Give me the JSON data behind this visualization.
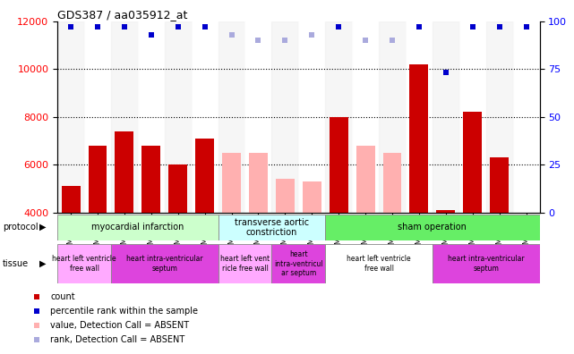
{
  "title": "GDS387 / aa035912_at",
  "samples": [
    "GSM6118",
    "GSM6119",
    "GSM6120",
    "GSM6121",
    "GSM6122",
    "GSM6123",
    "GSM6132",
    "GSM6133",
    "GSM6134",
    "GSM6135",
    "GSM6124",
    "GSM6125",
    "GSM6126",
    "GSM6127",
    "GSM6128",
    "GSM6129",
    "GSM6130",
    "GSM6131"
  ],
  "counts": [
    5100,
    6800,
    7400,
    6800,
    6000,
    7100,
    6500,
    6500,
    5400,
    5300,
    8000,
    6800,
    6500,
    10200,
    4100,
    8200,
    6300,
    null
  ],
  "absent": [
    false,
    false,
    false,
    false,
    false,
    false,
    true,
    true,
    true,
    true,
    false,
    true,
    true,
    false,
    false,
    false,
    false,
    false
  ],
  "percentile_ranks": [
    97,
    97,
    97,
    93,
    97,
    97,
    93,
    90,
    90,
    93,
    97,
    90,
    90,
    97,
    73,
    97,
    97,
    97
  ],
  "absent_ranks": [
    false,
    false,
    false,
    false,
    false,
    false,
    true,
    true,
    true,
    true,
    false,
    true,
    true,
    false,
    false,
    false,
    false,
    false
  ],
  "bar_color_present": "#cc0000",
  "bar_color_absent": "#ffb0b0",
  "rank_color_present": "#0000cc",
  "rank_color_absent": "#aaaadd",
  "ylim_left": [
    4000,
    12000
  ],
  "ylim_right": [
    0,
    100
  ],
  "yticks_left": [
    4000,
    6000,
    8000,
    10000,
    12000
  ],
  "yticks_right": [
    0,
    25,
    50,
    75,
    100
  ],
  "protocols": [
    {
      "label": "myocardial infarction",
      "start": 0,
      "end": 6,
      "color": "#ccffcc"
    },
    {
      "label": "transverse aortic\nconstriction",
      "start": 6,
      "end": 10,
      "color": "#ccffff"
    },
    {
      "label": "sham operation",
      "start": 10,
      "end": 18,
      "color": "#66ee66"
    }
  ],
  "tissues": [
    {
      "label": "heart left ventricle\nfree wall",
      "start": 0,
      "end": 2,
      "color": "#ffaaff"
    },
    {
      "label": "heart intra-ventricular\nseptum",
      "start": 2,
      "end": 6,
      "color": "#dd44dd"
    },
    {
      "label": "heart left vent\nricle free wall",
      "start": 6,
      "end": 8,
      "color": "#ffaaff"
    },
    {
      "label": "heart\nintra-ventricul\nar septum",
      "start": 8,
      "end": 10,
      "color": "#dd44dd"
    },
    {
      "label": "heart left ventricle\nfree wall",
      "start": 10,
      "end": 14,
      "color": "#ffffff"
    },
    {
      "label": "heart intra-ventricular\nseptum",
      "start": 14,
      "end": 18,
      "color": "#dd44dd"
    }
  ],
  "legend_items": [
    {
      "label": "count",
      "color": "#cc0000"
    },
    {
      "label": "percentile rank within the sample",
      "color": "#0000cc"
    },
    {
      "label": "value, Detection Call = ABSENT",
      "color": "#ffb0b0"
    },
    {
      "label": "rank, Detection Call = ABSENT",
      "color": "#aaaadd"
    }
  ]
}
